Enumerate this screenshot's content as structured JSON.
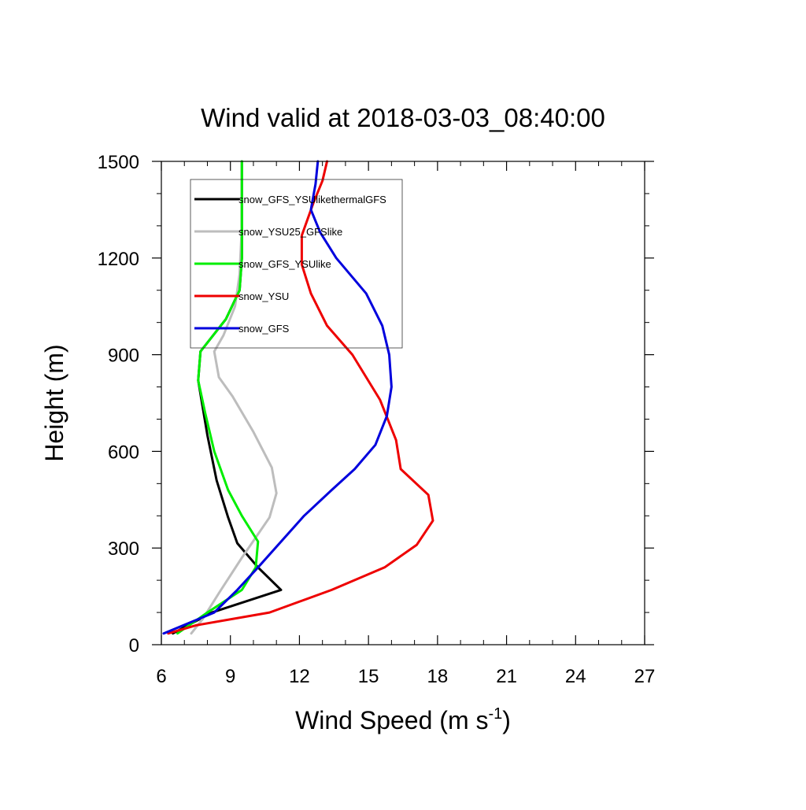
{
  "chart_data": {
    "type": "line",
    "title": "Wind valid at 2018-03-03_08:40:00",
    "xlabel": "Wind Speed (m s",
    "xlabel_sup": "-1",
    "xlabel_tail": ")",
    "ylabel": "Height (m)",
    "xlim": [
      6,
      27
    ],
    "ylim": [
      0,
      1500
    ],
    "x_ticks": [
      6,
      9,
      12,
      15,
      18,
      21,
      24,
      27
    ],
    "y_ticks": [
      0,
      300,
      600,
      900,
      1200,
      1500
    ],
    "x_tick_labels": [
      "6",
      "9",
      "12",
      "15",
      "18",
      "21",
      "24",
      "27"
    ],
    "y_tick_labels": [
      "0",
      "300",
      "600",
      "900",
      "1200",
      "1500"
    ],
    "legend_position": "top-left",
    "grid": false,
    "series": [
      {
        "name": "snow_GFS_YSUlikethermalGFS",
        "color": "#000000",
        "points": [
          [
            6.5,
            35
          ],
          [
            8.2,
            100
          ],
          [
            11.2,
            170
          ],
          [
            10.2,
            240
          ],
          [
            9.3,
            315
          ],
          [
            8.9,
            395
          ],
          [
            8.4,
            510
          ],
          [
            8.0,
            650
          ],
          [
            7.6,
            820
          ],
          [
            7.7,
            910
          ],
          [
            8.8,
            1010
          ],
          [
            9.4,
            1100
          ],
          [
            9.5,
            1200
          ],
          [
            9.5,
            1300
          ],
          [
            9.5,
            1500
          ]
        ]
      },
      {
        "name": "snow_YSU25_GFSlike",
        "color": "#bdbdbd",
        "points": [
          [
            7.3,
            35
          ],
          [
            7.8,
            80
          ],
          [
            8.5,
            160
          ],
          [
            9.5,
            270
          ],
          [
            10.7,
            395
          ],
          [
            11.0,
            470
          ],
          [
            10.8,
            550
          ],
          [
            10.0,
            660
          ],
          [
            9.1,
            770
          ],
          [
            8.5,
            830
          ],
          [
            8.3,
            910
          ],
          [
            8.7,
            960
          ],
          [
            9.2,
            1050
          ],
          [
            9.4,
            1150
          ],
          [
            9.5,
            1300
          ],
          [
            9.5,
            1500
          ]
        ]
      },
      {
        "name": "snow_GFS_YSUlike",
        "color": "#00ee00",
        "points": [
          [
            6.7,
            35
          ],
          [
            8.0,
            100
          ],
          [
            9.5,
            170
          ],
          [
            10.1,
            240
          ],
          [
            10.2,
            320
          ],
          [
            9.5,
            400
          ],
          [
            8.9,
            480
          ],
          [
            8.3,
            600
          ],
          [
            7.9,
            720
          ],
          [
            7.6,
            820
          ],
          [
            7.7,
            910
          ],
          [
            8.8,
            1010
          ],
          [
            9.4,
            1100
          ],
          [
            9.5,
            1200
          ],
          [
            9.5,
            1300
          ],
          [
            9.5,
            1500
          ]
        ]
      },
      {
        "name": "snow_YSU",
        "color": "#ee0000",
        "points": [
          [
            6.3,
            35
          ],
          [
            7.5,
            60
          ],
          [
            10.7,
            100
          ],
          [
            13.4,
            170
          ],
          [
            15.7,
            240
          ],
          [
            17.1,
            310
          ],
          [
            17.8,
            385
          ],
          [
            17.6,
            465
          ],
          [
            16.4,
            545
          ],
          [
            16.2,
            635
          ],
          [
            15.5,
            760
          ],
          [
            14.3,
            900
          ],
          [
            13.2,
            990
          ],
          [
            12.5,
            1090
          ],
          [
            12.1,
            1180
          ],
          [
            12.1,
            1270
          ],
          [
            12.6,
            1370
          ],
          [
            13.0,
            1440
          ],
          [
            13.2,
            1500
          ]
        ]
      },
      {
        "name": "snow_GFS",
        "color": "#0000dd",
        "points": [
          [
            6.1,
            35
          ],
          [
            8.3,
            100
          ],
          [
            9.3,
            170
          ],
          [
            10.2,
            240
          ],
          [
            12.2,
            400
          ],
          [
            13.4,
            480
          ],
          [
            14.4,
            545
          ],
          [
            15.3,
            620
          ],
          [
            15.8,
            710
          ],
          [
            16.0,
            800
          ],
          [
            15.9,
            900
          ],
          [
            15.6,
            990
          ],
          [
            14.9,
            1090
          ],
          [
            13.6,
            1200
          ],
          [
            12.9,
            1280
          ],
          [
            12.5,
            1350
          ],
          [
            12.7,
            1430
          ],
          [
            12.8,
            1500
          ]
        ]
      }
    ]
  }
}
